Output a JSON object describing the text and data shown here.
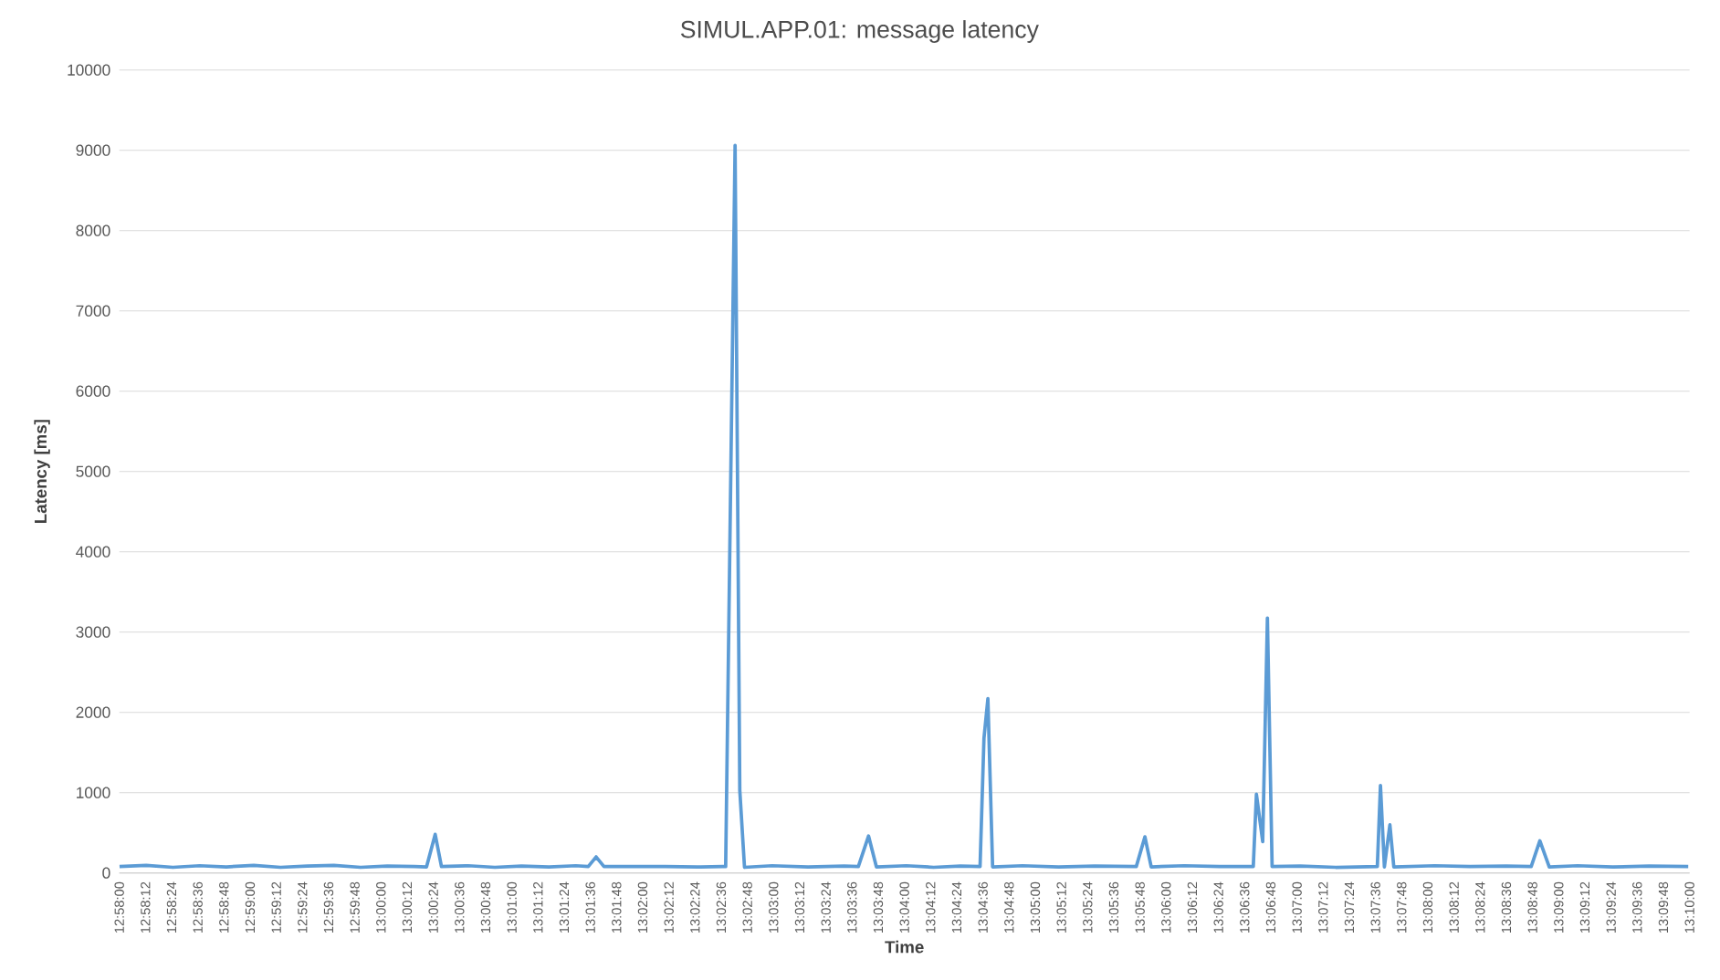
{
  "chart_data": {
    "type": "line",
    "title": "SIMUL.APP.01: message latency",
    "xlabel": "Time",
    "ylabel": "Latency [ms]",
    "grid": "y",
    "marker": "none",
    "line_style": "solid",
    "xlim": [
      12.96667,
      13.16667
    ],
    "ylim": [
      0,
      10000
    ],
    "yticks": [
      0,
      1000,
      2000,
      3000,
      4000,
      5000,
      6000,
      7000,
      8000,
      9000,
      10000
    ],
    "xticks": [
      {
        "value": 12.96667,
        "label": "12:58:00"
      },
      {
        "value": 12.97,
        "label": "12:58:12"
      },
      {
        "value": 12.97333,
        "label": "12:58:24"
      },
      {
        "value": 12.97667,
        "label": "12:58:36"
      },
      {
        "value": 12.98,
        "label": "12:58:48"
      },
      {
        "value": 12.98333,
        "label": "12:59:00"
      },
      {
        "value": 12.98667,
        "label": "12:59:12"
      },
      {
        "value": 12.99,
        "label": "12:59:24"
      },
      {
        "value": 12.99333,
        "label": "12:59:36"
      },
      {
        "value": 12.99667,
        "label": "12:59:48"
      },
      {
        "value": 13,
        "label": "13:00:00"
      },
      {
        "value": 13.00333,
        "label": "13:00:12"
      },
      {
        "value": 13.00667,
        "label": "13:00:24"
      },
      {
        "value": 13.01,
        "label": "13:00:36"
      },
      {
        "value": 13.01333,
        "label": "13:00:48"
      },
      {
        "value": 13.01667,
        "label": "13:01:00"
      },
      {
        "value": 13.02,
        "label": "13:01:12"
      },
      {
        "value": 13.02333,
        "label": "13:01:24"
      },
      {
        "value": 13.02667,
        "label": "13:01:36"
      },
      {
        "value": 13.03,
        "label": "13:01:48"
      },
      {
        "value": 13.03333,
        "label": "13:02:00"
      },
      {
        "value": 13.03667,
        "label": "13:02:12"
      },
      {
        "value": 13.04,
        "label": "13:02:24"
      },
      {
        "value": 13.04333,
        "label": "13:02:36"
      },
      {
        "value": 13.04667,
        "label": "13:02:48"
      },
      {
        "value": 13.05,
        "label": "13:03:00"
      },
      {
        "value": 13.05333,
        "label": "13:03:12"
      },
      {
        "value": 13.05667,
        "label": "13:03:24"
      },
      {
        "value": 13.06,
        "label": "13:03:36"
      },
      {
        "value": 13.06333,
        "label": "13:03:48"
      },
      {
        "value": 13.06667,
        "label": "13:04:00"
      },
      {
        "value": 13.07,
        "label": "13:04:12"
      },
      {
        "value": 13.07333,
        "label": "13:04:24"
      },
      {
        "value": 13.07667,
        "label": "13:04:36"
      },
      {
        "value": 13.08,
        "label": "13:04:48"
      },
      {
        "value": 13.08333,
        "label": "13:05:00"
      },
      {
        "value": 13.08667,
        "label": "13:05:12"
      },
      {
        "value": 13.09,
        "label": "13:05:24"
      },
      {
        "value": 13.09333,
        "label": "13:05:36"
      },
      {
        "value": 13.09667,
        "label": "13:05:48"
      },
      {
        "value": 13.1,
        "label": "13:06:00"
      },
      {
        "value": 13.10333,
        "label": "13:06:12"
      },
      {
        "value": 13.10667,
        "label": "13:06:24"
      },
      {
        "value": 13.11,
        "label": "13:06:36"
      },
      {
        "value": 13.11333,
        "label": "13:06:48"
      },
      {
        "value": 13.11667,
        "label": "13:07:00"
      },
      {
        "value": 13.12,
        "label": "13:07:12"
      },
      {
        "value": 13.12333,
        "label": "13:07:24"
      },
      {
        "value": 13.12667,
        "label": "13:07:36"
      },
      {
        "value": 13.13,
        "label": "13:07:48"
      },
      {
        "value": 13.13333,
        "label": "13:08:00"
      },
      {
        "value": 13.13667,
        "label": "13:08:12"
      },
      {
        "value": 13.14,
        "label": "13:08:24"
      },
      {
        "value": 13.14333,
        "label": "13:08:36"
      },
      {
        "value": 13.14667,
        "label": "13:08:48"
      },
      {
        "value": 13.15,
        "label": "13:09:00"
      },
      {
        "value": 13.15333,
        "label": "13:09:12"
      },
      {
        "value": 13.15667,
        "label": "13:09:24"
      },
      {
        "value": 13.16,
        "label": "13:09:36"
      },
      {
        "value": 13.16333,
        "label": "13:09:48"
      },
      {
        "value": 13.16667,
        "label": "13:10:00"
      }
    ],
    "series": [
      {
        "color": "#5b9bd5",
        "x": [
          12.9667,
          12.9701,
          12.9735,
          12.9769,
          12.9803,
          12.9838,
          12.9872,
          12.9906,
          12.994,
          12.9974,
          13.0008,
          13.0043,
          13.0058,
          13.0069,
          13.0077,
          13.0111,
          13.0145,
          13.0179,
          13.0214,
          13.0248,
          13.0264,
          13.0274,
          13.0284,
          13.0316,
          13.0362,
          13.0407,
          13.0435,
          13.0439,
          13.0451,
          13.0457,
          13.0463,
          13.0498,
          13.0544,
          13.059,
          13.0608,
          13.0621,
          13.0631,
          13.0669,
          13.0704,
          13.0738,
          13.0763,
          13.0768,
          13.0773,
          13.0779,
          13.0817,
          13.0863,
          13.0909,
          13.0962,
          13.0973,
          13.0981,
          13.1023,
          13.1068,
          13.1111,
          13.1115,
          13.1123,
          13.1129,
          13.1135,
          13.1171,
          13.1216,
          13.1269,
          13.1273,
          13.1278,
          13.1285,
          13.129,
          13.1342,
          13.1387,
          13.1433,
          13.1465,
          13.1476,
          13.1488,
          13.1524,
          13.1569,
          13.1615,
          13.1665
        ],
        "values": [
          80,
          95,
          70,
          90,
          75,
          95,
          70,
          85,
          95,
          70,
          85,
          80,
          75,
          480,
          80,
          90,
          70,
          85,
          75,
          90,
          80,
          200,
          80,
          80,
          80,
          75,
          80,
          80,
          9060,
          1030,
          70,
          90,
          75,
          85,
          80,
          460,
          75,
          90,
          70,
          85,
          80,
          1680,
          2170,
          75,
          90,
          75,
          85,
          80,
          450,
          75,
          90,
          80,
          80,
          980,
          390,
          3175,
          80,
          85,
          70,
          80,
          1090,
          75,
          600,
          75,
          90,
          80,
          85,
          80,
          400,
          75,
          90,
          75,
          85,
          80
        ]
      }
    ]
  }
}
